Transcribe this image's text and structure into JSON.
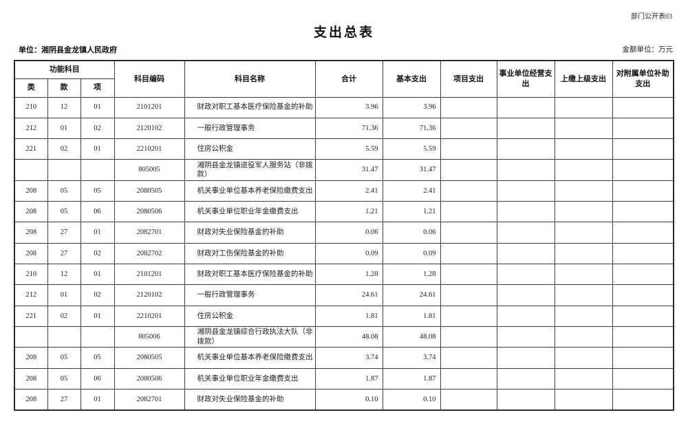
{
  "meta": {
    "doc_label": "部门公开表03"
  },
  "title": "支出总表",
  "unit_label": "单位：湘阴县金龙镇人民政府",
  "amount_unit_label": "金额单位：万元",
  "table": {
    "header": {
      "func_group": "功能科目",
      "class": "类",
      "section": "款",
      "item": "项",
      "code": "科目编码",
      "name": "科目名称",
      "total": "合计",
      "basic": "基本支出",
      "project": "项目支出",
      "operating": "事业单位经营支出",
      "upper": "上缴上级支出",
      "affiliate": "对附属单位补助支出"
    },
    "rows": [
      [
        "210",
        "12",
        "01",
        "2101201",
        "财政对职工基本医疗保险基金的补助",
        "3.96",
        "3.96",
        "",
        "",
        "",
        ""
      ],
      [
        "212",
        "01",
        "02",
        "2120102",
        "一般行政管理事务",
        "71.36",
        "71.36",
        "",
        "",
        "",
        ""
      ],
      [
        "221",
        "02",
        "01",
        "2210201",
        "住房公积金",
        "5.59",
        "5.59",
        "",
        "",
        "",
        ""
      ],
      [
        "",
        "",
        "",
        "805005",
        "湘阴县金龙镇退役军人服务站（非拨款）",
        "31.47",
        "31.47",
        "",
        "",
        "",
        ""
      ],
      [
        "208",
        "05",
        "05",
        "2080505",
        "机关事业单位基本养老保险缴费支出",
        "2.41",
        "2.41",
        "",
        "",
        "",
        ""
      ],
      [
        "208",
        "05",
        "06",
        "2080506",
        "机关事业单位职业年金缴费支出",
        "1.21",
        "1.21",
        "",
        "",
        "",
        ""
      ],
      [
        "208",
        "27",
        "01",
        "2082701",
        "财政对失业保险基金的补助",
        "0.06",
        "0.06",
        "",
        "",
        "",
        ""
      ],
      [
        "208",
        "27",
        "02",
        "2082702",
        "财政对工伤保险基金的补助",
        "0.09",
        "0.09",
        "",
        "",
        "",
        ""
      ],
      [
        "210",
        "12",
        "01",
        "2101201",
        "财政对职工基本医疗保险基金的补助",
        "1.28",
        "1.28",
        "",
        "",
        "",
        ""
      ],
      [
        "212",
        "01",
        "02",
        "2120102",
        "一般行政管理事务",
        "24.61",
        "24.61",
        "",
        "",
        "",
        ""
      ],
      [
        "221",
        "02",
        "01",
        "2210201",
        "住房公积金",
        "1.81",
        "1.81",
        "",
        "",
        "",
        ""
      ],
      [
        "",
        "",
        "",
        "805006",
        "湘阴县金龙镇综合行政执法大队（非拨款）",
        "48.08",
        "48.08",
        "",
        "",
        "",
        ""
      ],
      [
        "208",
        "05",
        "05",
        "2080505",
        "机关事业单位基本养老保险缴费支出",
        "3.74",
        "3.74",
        "",
        "",
        "",
        ""
      ],
      [
        "208",
        "05",
        "06",
        "2080506",
        "机关事业单位职业年金缴费支出",
        "1.87",
        "1.87",
        "",
        "",
        "",
        ""
      ],
      [
        "208",
        "27",
        "01",
        "2082701",
        "财政对失业保险基金的补助",
        "0.10",
        "0.10",
        "",
        "",
        "",
        ""
      ]
    ]
  }
}
